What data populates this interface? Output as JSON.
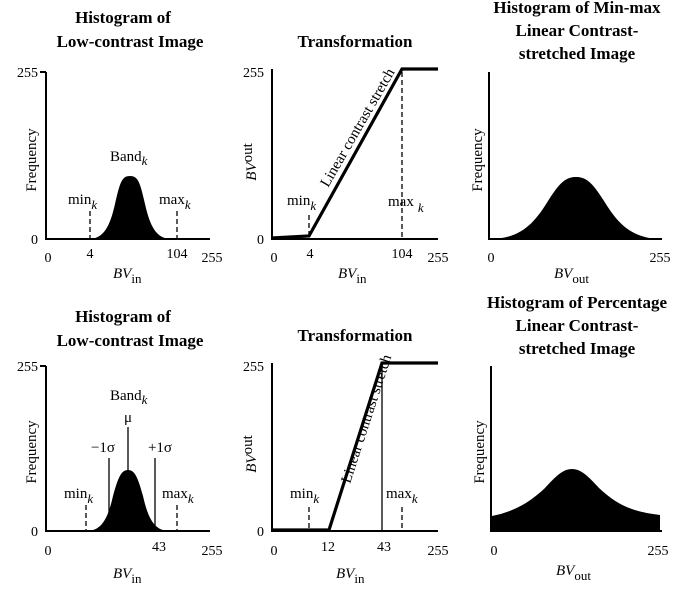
{
  "top": {
    "hist1": {
      "title_line1": "Histogram of",
      "title_line2": "Low-contrast Image",
      "y_max": "255",
      "y_zero": "0",
      "y_label": "Frequency",
      "band_label": "Band",
      "band_sub": "k",
      "min_label": "min",
      "min_sub": "k",
      "max_label": "max",
      "max_sub": "k",
      "x_ticks": [
        "0",
        "4",
        "104",
        "255"
      ],
      "x_label": "BV",
      "x_label_sub": "in"
    },
    "trans": {
      "title": "Transformation",
      "y_max": "255",
      "y_zero": "0",
      "y_label": "BV",
      "y_label_sub": "out",
      "line_label": "Linear contrast stretch",
      "min_label": "min",
      "min_sub": "k",
      "max_label": "max",
      "max_sub": "k",
      "x_ticks": [
        "0",
        "4",
        "104",
        "255"
      ],
      "x_label": "BV",
      "x_label_sub": "in"
    },
    "hist2": {
      "title_line1": "Histogram of Min-max",
      "title_line2": "Linear Contrast-",
      "title_line3": "stretched Image",
      "y_label": "Frequency",
      "x_ticks": [
        "0",
        "255"
      ],
      "x_label": "BV",
      "x_label_sub": "out"
    }
  },
  "bottom": {
    "hist1": {
      "title_line1": "Histogram of",
      "title_line2": "Low-contrast Image",
      "y_max": "255",
      "y_zero": "0",
      "y_label": "Frequency",
      "band_label": "Band",
      "band_sub": "k",
      "mu_label": "μ",
      "minus_sigma": "−1σ",
      "plus_sigma": "+1σ",
      "min_label": "min",
      "min_sub": "k",
      "max_label": "max",
      "max_sub": "k",
      "x_ticks": [
        "0",
        "43",
        "255"
      ],
      "x_label": "BV",
      "x_label_sub": "in"
    },
    "trans": {
      "title": "Transformation",
      "y_max": "255",
      "y_zero": "0",
      "y_label": "BV",
      "y_label_sub": "out",
      "line_label": "Linear contrast stretch",
      "min_label": "min",
      "min_sub": "k",
      "max_label": "max",
      "max_sub": "k",
      "x_ticks": [
        "0",
        "12",
        "43",
        "255"
      ],
      "x_label": "BV",
      "x_label_sub": "in"
    },
    "hist2": {
      "title_line1": "Histogram of Percentage",
      "title_line2": "Linear Contrast-",
      "title_line3": "stretched Image",
      "y_label": "Frequency",
      "x_ticks": [
        "0",
        "255"
      ],
      "x_label": "BV",
      "x_label_sub": "out"
    }
  },
  "colors": {
    "ink": "#000000",
    "background": "#ffffff"
  }
}
